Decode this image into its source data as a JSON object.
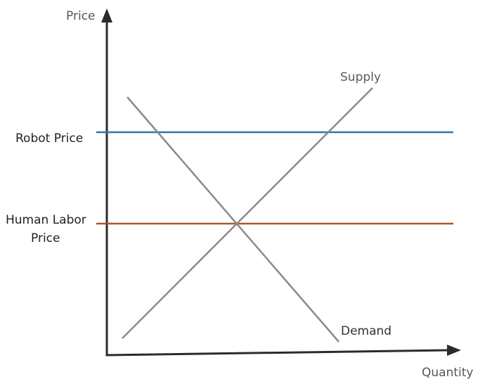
{
  "axes": {
    "y_label": "Price",
    "x_label": "Quantity"
  },
  "curves": {
    "supply_label": "Supply",
    "demand_label": "Demand"
  },
  "price_levels": {
    "robot": {
      "label": "Robot Price",
      "color": "#2e7aa4"
    },
    "human_labor": {
      "label_line1": "Human Labor",
      "label_line2": "Price",
      "color": "#a9572a"
    }
  }
}
